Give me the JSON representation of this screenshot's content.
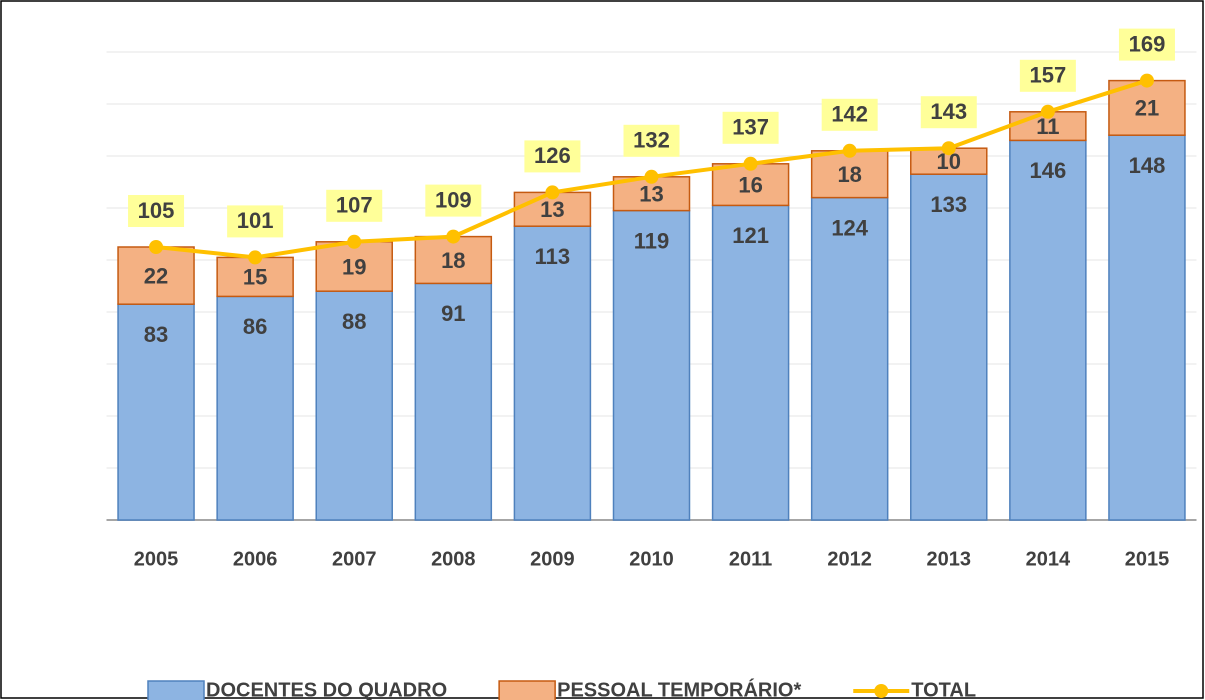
{
  "chart_data": {
    "type": "stacked-bar-line",
    "categories": [
      "2005",
      "2006",
      "2007",
      "2008",
      "2009",
      "2010",
      "2011",
      "2012",
      "2013",
      "2014",
      "2015"
    ],
    "series": [
      {
        "name": "DOCENTES DO QUADRO",
        "type": "bar",
        "color": "#8db4e2",
        "values": [
          83,
          86,
          88,
          91,
          113,
          119,
          121,
          124,
          133,
          146,
          148
        ]
      },
      {
        "name": "PESSOAL TEMPORÁRIO*",
        "type": "bar",
        "color": "#f4b183",
        "values": [
          22,
          15,
          19,
          18,
          13,
          13,
          16,
          18,
          10,
          11,
          21
        ]
      },
      {
        "name": "TOTAL",
        "type": "line",
        "color": "#ffc000",
        "values": [
          105,
          101,
          107,
          109,
          126,
          132,
          137,
          142,
          143,
          157,
          169
        ]
      }
    ],
    "ylim": [
      0,
      200
    ],
    "yticks": [
      0,
      20,
      40,
      60,
      80,
      100,
      120,
      140,
      160,
      180
    ],
    "grid": true,
    "legend": "bottom"
  }
}
